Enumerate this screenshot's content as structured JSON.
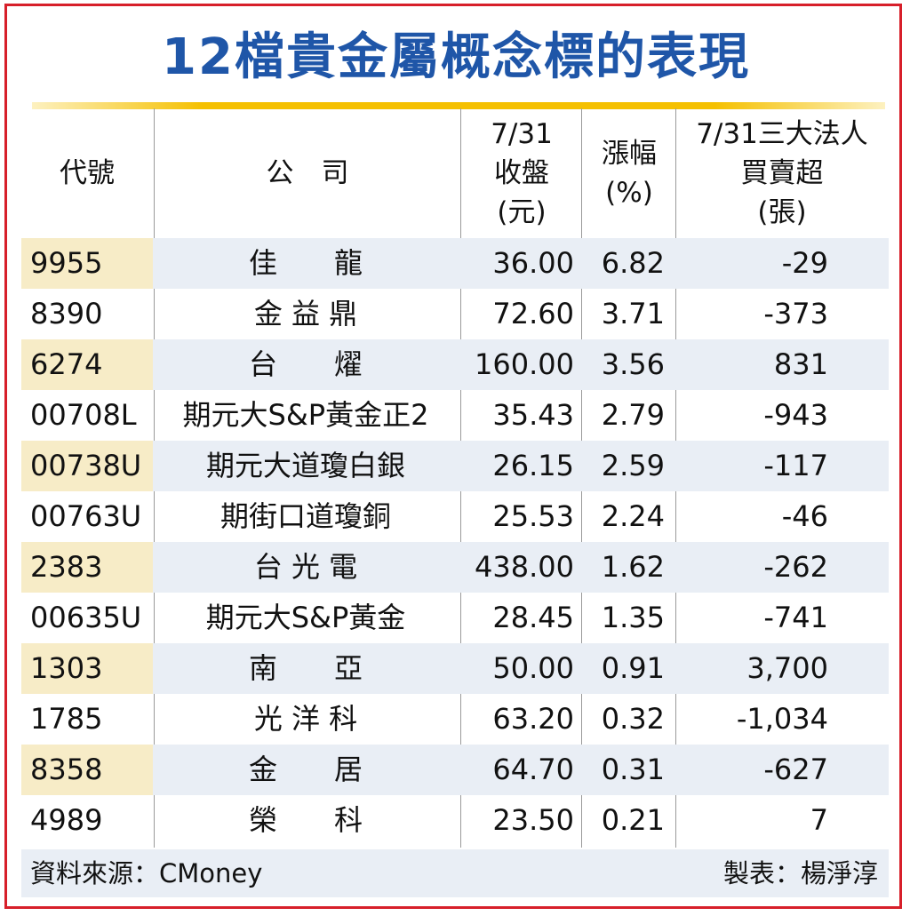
{
  "title": "12檔貴金屬概念標的表現",
  "colors": {
    "title": "#1f56a8",
    "border": "#d71f2a",
    "gold": "#f5c000",
    "row_shade": "#e9eef5",
    "code_shade": "#f7ecc7"
  },
  "headers": {
    "code": "代號",
    "company": "公　司",
    "close": [
      "7/31",
      "收盤",
      "(元)"
    ],
    "pct": [
      "漲幅",
      "(%)"
    ],
    "inst": [
      "7/31三大法人",
      "買賣超",
      "(張)"
    ]
  },
  "rows": [
    {
      "code": "9955",
      "name": "佳　　龍",
      "close": "36.00",
      "pct": "6.82",
      "inst": "-29"
    },
    {
      "code": "8390",
      "name": "金 益 鼎",
      "close": "72.60",
      "pct": "3.71",
      "inst": "-373"
    },
    {
      "code": "6274",
      "name": "台　　燿",
      "close": "160.00",
      "pct": "3.56",
      "inst": "831"
    },
    {
      "code": "00708L",
      "name": "期元大S&P黃金正2",
      "close": "35.43",
      "pct": "2.79",
      "inst": "-943"
    },
    {
      "code": "00738U",
      "name": "期元大道瓊白銀",
      "close": "26.15",
      "pct": "2.59",
      "inst": "-117"
    },
    {
      "code": "00763U",
      "name": "期街口道瓊銅",
      "close": "25.53",
      "pct": "2.24",
      "inst": "-46"
    },
    {
      "code": "2383",
      "name": "台 光 電",
      "close": "438.00",
      "pct": "1.62",
      "inst": "-262"
    },
    {
      "code": "00635U",
      "name": "期元大S&P黃金",
      "close": "28.45",
      "pct": "1.35",
      "inst": "-741"
    },
    {
      "code": "1303",
      "name": "南　　亞",
      "close": "50.00",
      "pct": "0.91",
      "inst": "3,700"
    },
    {
      "code": "1785",
      "name": "光 洋 科",
      "close": "63.20",
      "pct": "0.32",
      "inst": "-1,034"
    },
    {
      "code": "8358",
      "name": "金　　居",
      "close": "64.70",
      "pct": "0.31",
      "inst": "-627"
    },
    {
      "code": "4989",
      "name": "榮　　科",
      "close": "23.50",
      "pct": "0.21",
      "inst": "7"
    }
  ],
  "footer": {
    "source": "資料來源：CMoney",
    "author": "製表：楊淨淳"
  }
}
